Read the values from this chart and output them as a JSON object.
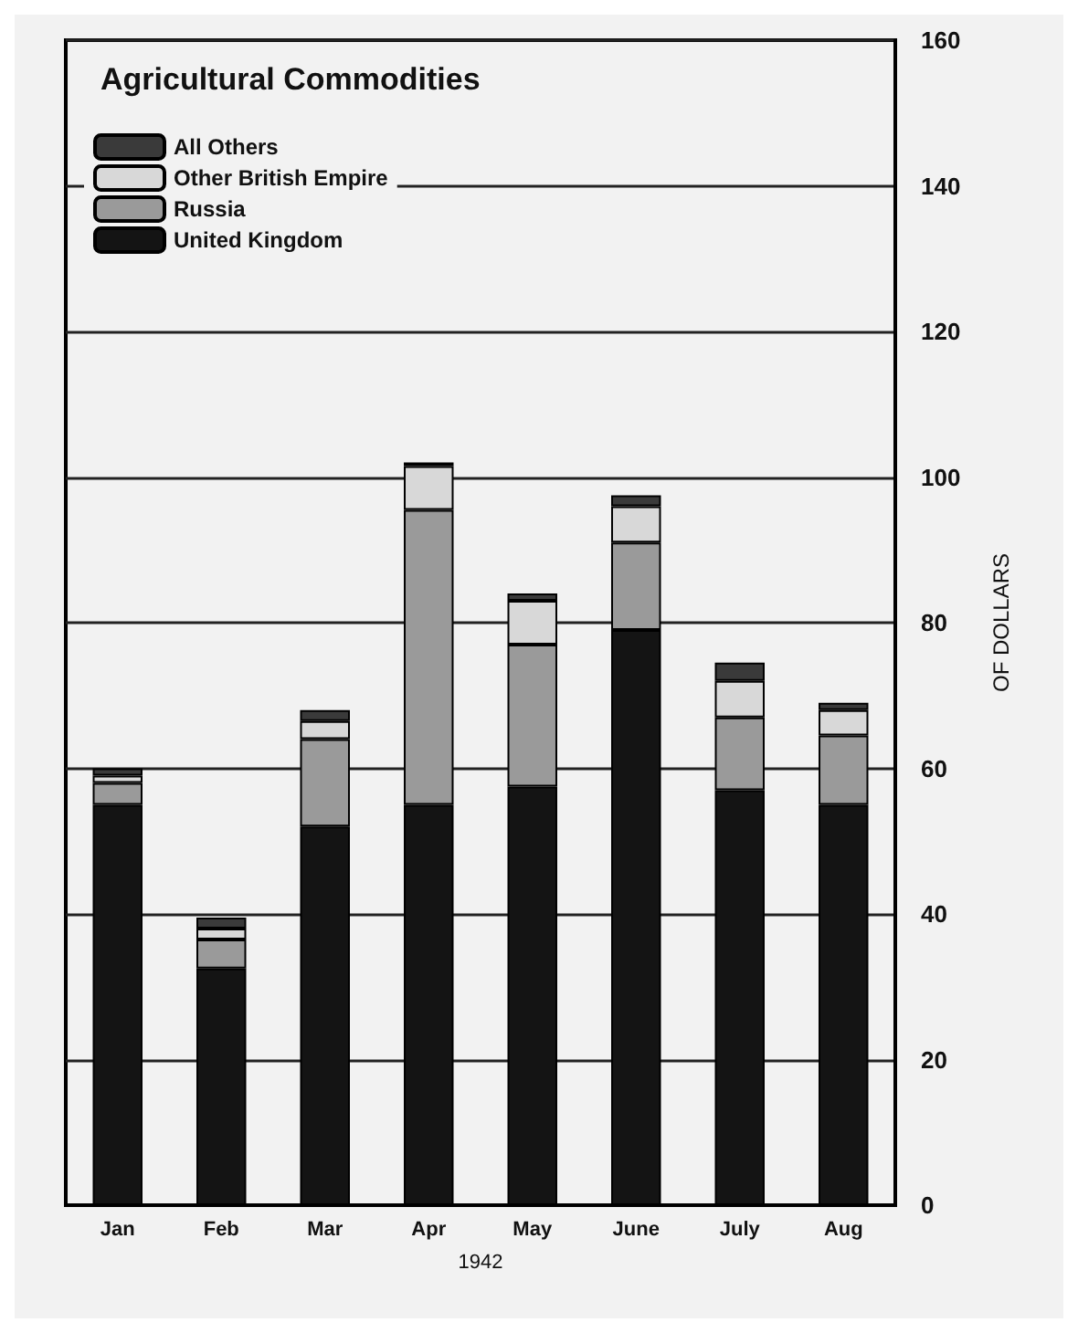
{
  "chart_data": {
    "type": "bar",
    "title": "Agricultural Commodities",
    "xlabel": "1942",
    "ylabel": "OF DOLLARS",
    "stacked": true,
    "categories": [
      "Jan",
      "Feb",
      "Mar",
      "Apr",
      "May",
      "June",
      "July",
      "Aug"
    ],
    "series": [
      {
        "name": "United Kingdom",
        "color": "#141414",
        "values": [
          55,
          32.5,
          52,
          55,
          57.5,
          79,
          57,
          55
        ]
      },
      {
        "name": "Russia",
        "color": "#9a9a9a",
        "values": [
          3,
          4,
          12,
          40.5,
          19.5,
          12,
          10,
          9.5
        ]
      },
      {
        "name": "Other British Empire",
        "color": "#d8d8d8",
        "values": [
          1,
          1.5,
          2.5,
          6,
          6,
          5,
          5,
          3.5
        ]
      },
      {
        "name": "All Others",
        "color": "#3a3a3a",
        "values": [
          1,
          1.5,
          1.5,
          0.5,
          1,
          1.5,
          2.5,
          1
        ]
      }
    ],
    "ylim": [
      0,
      160
    ],
    "yticks": [
      0,
      20,
      40,
      60,
      80,
      100,
      120,
      140,
      160
    ],
    "grid": "y",
    "legend": "top left"
  }
}
